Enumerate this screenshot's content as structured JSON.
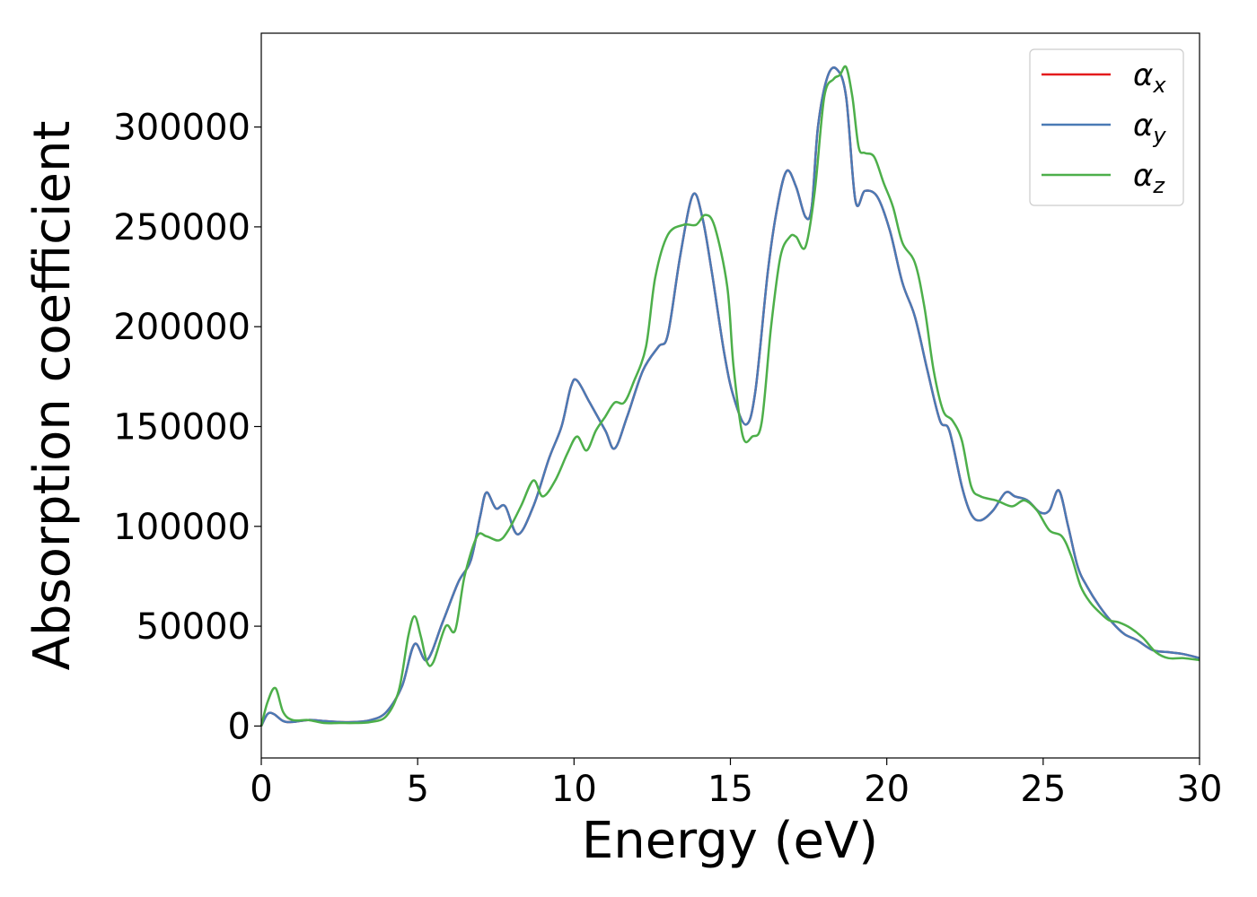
{
  "chart_data": {
    "type": "line",
    "title": "",
    "xlabel": "Energy (eV)",
    "ylabel": "Absorption coefficient",
    "xlim": [
      0,
      30
    ],
    "ylim": [
      -16000,
      347000
    ],
    "xticks": [
      0,
      5,
      10,
      15,
      20,
      25,
      30
    ],
    "yticks": [
      0,
      50000,
      100000,
      150000,
      200000,
      250000,
      300000
    ],
    "grid": false,
    "legend": "top-right",
    "series": [
      {
        "name": "α",
        "subscript": "x",
        "color": "#e41a1c",
        "x": [
          0,
          0.2,
          0.4,
          0.7,
          1.0,
          1.5,
          2.0,
          2.5,
          3.0,
          3.5,
          4.0,
          4.5,
          4.9,
          5.3,
          5.8,
          6.3,
          6.7,
          7.0,
          7.2,
          7.5,
          7.8,
          8.2,
          8.7,
          9.2,
          9.6,
          9.9,
          10.1,
          10.5,
          11.0,
          11.3,
          11.7,
          12.2,
          12.7,
          13.0,
          13.4,
          13.8,
          14.1,
          14.4,
          14.8,
          15.1,
          15.5,
          15.8,
          16.2,
          16.5,
          16.8,
          17.1,
          17.4,
          17.6,
          17.8,
          18.1,
          18.4,
          18.7,
          19.0,
          19.3,
          19.7,
          20.1,
          20.5,
          20.9,
          21.3,
          21.7,
          22.0,
          22.4,
          22.7,
          23.0,
          23.4,
          23.8,
          24.1,
          24.5,
          24.9,
          25.2,
          25.5,
          25.8,
          26.1,
          26.4,
          26.8,
          27.2,
          27.6,
          28.0,
          28.5,
          29.0,
          29.5,
          30.0
        ],
        "y": [
          0,
          6000,
          6000,
          2500,
          2000,
          3000,
          2500,
          2000,
          2000,
          3000,
          7000,
          20000,
          41000,
          33000,
          52000,
          72000,
          83000,
          105000,
          117000,
          109000,
          110000,
          96000,
          110000,
          134000,
          150000,
          170000,
          173000,
          162000,
          148000,
          139000,
          155000,
          178000,
          190000,
          196000,
          236000,
          266000,
          255000,
          228000,
          187000,
          165000,
          151000,
          168000,
          228000,
          260000,
          278000,
          270000,
          255000,
          260000,
          300000,
          325000,
          329000,
          315000,
          263000,
          268000,
          265000,
          248000,
          222000,
          205000,
          178000,
          153000,
          148000,
          120000,
          106000,
          103000,
          108000,
          117000,
          115000,
          113000,
          107000,
          108000,
          118000,
          100000,
          80000,
          70000,
          60000,
          52000,
          46000,
          43000,
          38000,
          37000,
          36000,
          34000
        ]
      },
      {
        "name": "α",
        "subscript": "y",
        "color": "#4a7ab5",
        "x": [
          0,
          0.2,
          0.4,
          0.7,
          1.0,
          1.5,
          2.0,
          2.5,
          3.0,
          3.5,
          4.0,
          4.5,
          4.9,
          5.3,
          5.8,
          6.3,
          6.7,
          7.0,
          7.2,
          7.5,
          7.8,
          8.2,
          8.7,
          9.2,
          9.6,
          9.9,
          10.1,
          10.5,
          11.0,
          11.3,
          11.7,
          12.2,
          12.7,
          13.0,
          13.4,
          13.8,
          14.1,
          14.4,
          14.8,
          15.1,
          15.5,
          15.8,
          16.2,
          16.5,
          16.8,
          17.1,
          17.4,
          17.6,
          17.8,
          18.1,
          18.4,
          18.7,
          19.0,
          19.3,
          19.7,
          20.1,
          20.5,
          20.9,
          21.3,
          21.7,
          22.0,
          22.4,
          22.7,
          23.0,
          23.4,
          23.8,
          24.1,
          24.5,
          24.9,
          25.2,
          25.5,
          25.8,
          26.1,
          26.4,
          26.8,
          27.2,
          27.6,
          28.0,
          28.5,
          29.0,
          29.5,
          30.0
        ],
        "y": [
          0,
          6000,
          6000,
          2500,
          2000,
          3000,
          2500,
          2000,
          2000,
          3000,
          7000,
          20000,
          41000,
          33000,
          52000,
          72000,
          83000,
          105000,
          117000,
          109000,
          110000,
          96000,
          110000,
          134000,
          150000,
          170000,
          173000,
          162000,
          148000,
          139000,
          155000,
          178000,
          190000,
          196000,
          236000,
          266000,
          255000,
          228000,
          187000,
          165000,
          151000,
          168000,
          228000,
          260000,
          278000,
          270000,
          255000,
          260000,
          300000,
          325000,
          329000,
          315000,
          263000,
          268000,
          265000,
          248000,
          222000,
          205000,
          178000,
          153000,
          148000,
          120000,
          106000,
          103000,
          108000,
          117000,
          115000,
          113000,
          107000,
          108000,
          118000,
          100000,
          80000,
          70000,
          60000,
          52000,
          46000,
          43000,
          38000,
          37000,
          36000,
          34000
        ]
      },
      {
        "name": "α",
        "subscript": "z",
        "color": "#4daf4a",
        "x": [
          0,
          0.2,
          0.45,
          0.7,
          1.0,
          1.5,
          2.0,
          2.5,
          3.0,
          3.5,
          4.0,
          4.4,
          4.7,
          4.9,
          5.1,
          5.3,
          5.5,
          5.9,
          6.2,
          6.5,
          6.9,
          7.2,
          7.6,
          7.9,
          8.3,
          8.7,
          9.0,
          9.4,
          9.8,
          10.1,
          10.4,
          10.7,
          11.0,
          11.3,
          11.6,
          11.9,
          12.3,
          12.6,
          13.0,
          13.5,
          13.9,
          14.2,
          14.5,
          14.9,
          15.1,
          15.4,
          15.7,
          16.0,
          16.3,
          16.6,
          16.9,
          17.1,
          17.4,
          17.7,
          18.0,
          18.3,
          18.5,
          18.7,
          18.9,
          19.1,
          19.3,
          19.6,
          19.9,
          20.2,
          20.5,
          20.9,
          21.2,
          21.5,
          21.8,
          22.1,
          22.4,
          22.7,
          23.0,
          23.5,
          24.0,
          24.4,
          24.8,
          25.2,
          25.6,
          25.9,
          26.2,
          26.5,
          26.8,
          27.1,
          27.4,
          27.8,
          28.2,
          28.6,
          29.0,
          29.5,
          30.0
        ],
        "y": [
          0,
          12000,
          19000,
          7000,
          3000,
          3000,
          1500,
          1500,
          1500,
          2000,
          5000,
          18000,
          45000,
          55000,
          45000,
          32000,
          32000,
          50000,
          48000,
          75000,
          95000,
          95000,
          93000,
          98000,
          110000,
          123000,
          115000,
          123000,
          137000,
          145000,
          138000,
          148000,
          155000,
          162000,
          162000,
          172000,
          190000,
          225000,
          246000,
          251000,
          251000,
          256000,
          250000,
          220000,
          180000,
          145000,
          145000,
          152000,
          200000,
          235000,
          245000,
          245000,
          240000,
          268000,
          315000,
          324000,
          326000,
          330000,
          315000,
          290000,
          287000,
          285000,
          272000,
          260000,
          242000,
          232000,
          210000,
          178000,
          158000,
          153000,
          143000,
          120000,
          115000,
          113000,
          110000,
          113000,
          108000,
          98000,
          95000,
          85000,
          70000,
          62000,
          57000,
          53000,
          52000,
          49000,
          44000,
          37000,
          34000,
          34000,
          33000
        ]
      }
    ]
  }
}
